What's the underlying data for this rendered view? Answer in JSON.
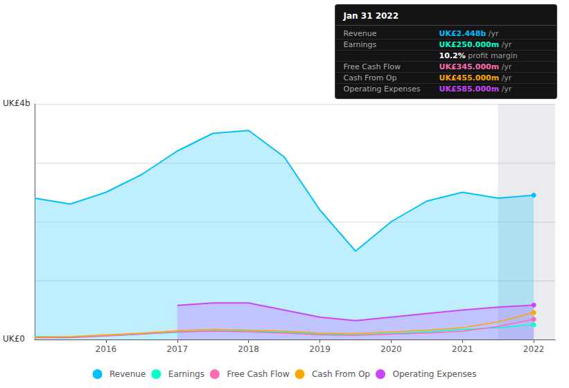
{
  "chart_data": {
    "type": "line",
    "annotations": [
      "UK£4b",
      "UK£0"
    ],
    "x": [
      2015.0,
      2015.5,
      2016.0,
      2016.5,
      2017.0,
      2017.5,
      2018.0,
      2018.5,
      2019.0,
      2019.5,
      2020.0,
      2020.5,
      2021.0,
      2021.5,
      2022.0
    ],
    "series": [
      {
        "name": "Revenue",
        "type": "area",
        "color": "#00bfff",
        "values": [
          2.4,
          2.3,
          2.5,
          2.8,
          3.2,
          3.5,
          3.55,
          3.1,
          2.2,
          1.5,
          2.0,
          2.35,
          2.5,
          2.4,
          2.45
        ]
      },
      {
        "name": "Earnings",
        "type": "line",
        "color": "#00ffcc",
        "values": [
          0.05,
          0.04,
          0.06,
          0.09,
          0.12,
          0.15,
          0.14,
          0.12,
          0.09,
          0.08,
          0.1,
          0.13,
          0.17,
          0.2,
          0.25
        ]
      },
      {
        "name": "Free Cash Flow",
        "type": "line",
        "color": "#ff69b4",
        "values": [
          0.03,
          0.03,
          0.06,
          0.09,
          0.13,
          0.14,
          0.13,
          0.11,
          0.08,
          0.07,
          0.09,
          0.11,
          0.14,
          0.22,
          0.345
        ]
      },
      {
        "name": "Cash From Op",
        "type": "line",
        "color": "#ffa500",
        "values": [
          0.04,
          0.05,
          0.08,
          0.11,
          0.15,
          0.17,
          0.16,
          0.14,
          0.11,
          0.1,
          0.13,
          0.16,
          0.2,
          0.3,
          0.455
        ]
      },
      {
        "name": "Operating Expenses",
        "type": "area",
        "color": "#cc44ff",
        "values": [
          null,
          null,
          null,
          null,
          0.58,
          0.62,
          0.62,
          0.5,
          0.38,
          0.32,
          0.38,
          0.44,
          0.5,
          0.55,
          0.585
        ]
      }
    ],
    "shaded_from": 2021.5,
    "xlim": [
      2015.0,
      2022.3
    ],
    "xticks": [
      2016,
      2017,
      2018,
      2019,
      2020,
      2021,
      2022
    ],
    "ylim": [
      0,
      4.0
    ],
    "yticks": [
      0,
      1,
      2,
      3,
      4
    ],
    "grid": true,
    "tick_labels": "x",
    "legend": "bottom",
    "info_box": {
      "title": "Jan 31 2022",
      "rows": [
        {
          "label": "Revenue",
          "value": "UK£2.448b",
          "unit": "/yr",
          "color": "#00bfff"
        },
        {
          "label": "Earnings",
          "value": "UK£250.000m",
          "unit": "/yr",
          "color": "#00ffcc"
        },
        {
          "value": "10.2%",
          "unit": "profit margin",
          "color": "#ffffff"
        },
        {
          "label": "Free Cash Flow",
          "value": "UK£345.000m",
          "unit": "/yr",
          "color": "#ff69b4"
        },
        {
          "label": "Cash From Op",
          "value": "UK£455.000m",
          "unit": "/yr",
          "color": "#ffa500"
        },
        {
          "label": "Operating Expenses",
          "value": "UK£585.000m",
          "unit": "/yr",
          "color": "#cc44ff"
        }
      ]
    }
  }
}
